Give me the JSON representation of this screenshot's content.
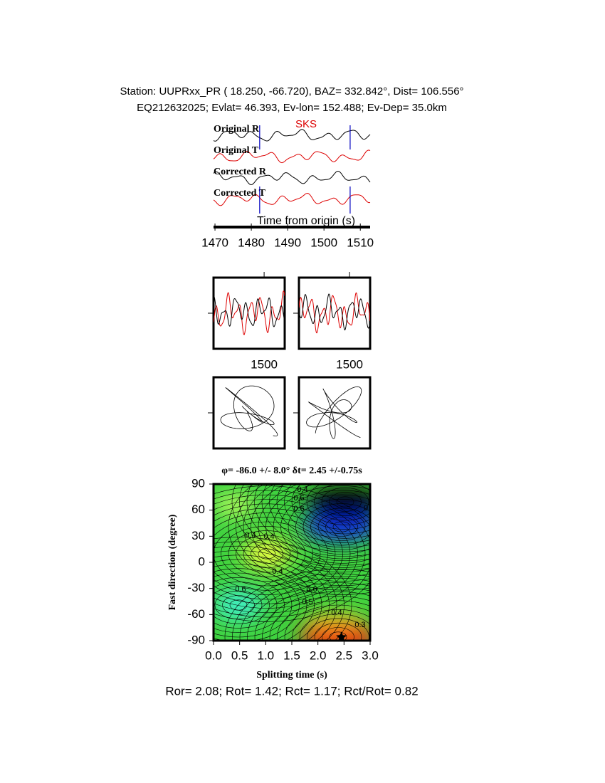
{
  "header": {
    "line1": "Station: UUPRxx_PR (  18.250,  -66.720), BAZ=  332.842°, Dist=  106.556°",
    "line2": "EQ212632025; Evlat=  46.393, Ev-lon= 152.488; Ev-Dep= 35.0km"
  },
  "traces": {
    "labels": [
      "Original R",
      "Original T",
      "Corrected R",
      "Corrected T"
    ],
    "phase": "SKS",
    "xlabel": "Time from origin (s)",
    "xlim": [
      1469.6,
      1512.7
    ],
    "xticks": [
      1470,
      1480,
      1490,
      1500,
      1510
    ],
    "window": [
      1482.3,
      1507.2
    ]
  },
  "windows": {
    "xticks": [
      1500
    ]
  },
  "grid_search": {
    "title": "φ= -86.0 +/- 8.0° δt= 2.45 +/-0.75s",
    "xlabel": "Splitting time (s)",
    "ylabel": "Fast direction (degree)",
    "xlim": [
      0,
      3
    ],
    "ylim": [
      -90,
      90
    ],
    "xticks": [
      {
        "value": 0,
        "label": "0.0"
      },
      {
        "value": 0.5,
        "label": "0.5"
      },
      {
        "value": 1,
        "label": "1.0"
      },
      {
        "value": 1.5,
        "label": "1.5"
      },
      {
        "value": 2,
        "label": "2.0"
      },
      {
        "value": 2.5,
        "label": "2.5"
      },
      {
        "value": 3,
        "label": "3.0"
      }
    ],
    "yticks": [
      -90,
      -60,
      -30,
      0,
      30,
      60,
      90
    ],
    "best": {
      "x": 2.45,
      "y": -86
    },
    "contour_labels": [
      "0.4",
      "0.6",
      "0",
      "0.4",
      "0.4",
      "0.6",
      "0.4",
      "0.6",
      "0.6",
      "0.5",
      "0.4",
      "0.3"
    ]
  },
  "footer": "Ror= 2.08; Rot= 1.42; Rct= 1.17; Rct/Rot= 0.82"
}
